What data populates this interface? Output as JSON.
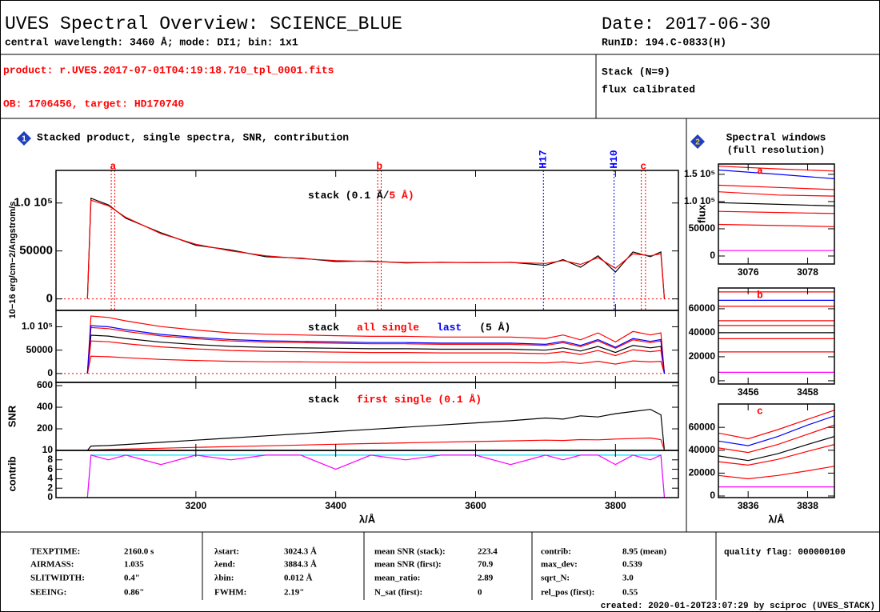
{
  "header": {
    "title": "UVES Spectral Overview: SCIENCE_BLUE",
    "subtitle": "central wavelength: 3460 Å; mode: DI1; bin: 1x1",
    "date": "Date: 2017-06-30",
    "run_id": "RunID: 194.C-0833(H)",
    "product": "product: r.UVES.2017-07-01T04:19:18.710_tpl_0001.fits",
    "ob": "OB: 1706456, target: HD170740",
    "stack": "Stack (N=9)",
    "calibration": "flux calibrated"
  },
  "panel_titles": {
    "main_number": "1",
    "main": "Stacked product, single spectra, SNR, contribution",
    "windows_number": "2",
    "windows": "Spectral windows",
    "windows_sub": "(full resolution)"
  },
  "chart_data": [
    {
      "type": "line",
      "ylabel": "10−16 erg/cm−2/Angstrom/s",
      "xlim": [
        3000,
        3890
      ],
      "ylim": [
        -12000,
        134000
      ],
      "yticks": [
        0,
        50000,
        {
          "value": 100000,
          "label": "1.0 10⁵"
        }
      ],
      "x": [
        3045,
        3050,
        3075,
        3100,
        3150,
        3200,
        3250,
        3300,
        3350,
        3400,
        3450,
        3500,
        3550,
        3600,
        3650,
        3700,
        3725,
        3750,
        3775,
        3800,
        3825,
        3850,
        3865,
        3870
      ],
      "series": [
        {
          "name": "stack (0.1 Å/",
          "color": "#000000",
          "values": [
            0,
            105000,
            98000,
            84000,
            69000,
            56000,
            51000,
            44000,
            42500,
            39000,
            39500,
            37500,
            38200,
            37800,
            38100,
            35000,
            41000,
            33000,
            45000,
            28000,
            49000,
            44000,
            49000,
            0
          ]
        },
        {
          "name": "5 Å)",
          "color": "#ff0000",
          "values": [
            0,
            103000,
            97000,
            85000,
            68000,
            57000,
            50000,
            45000,
            42000,
            40000,
            39000,
            38000,
            38000,
            38000,
            38000,
            37000,
            40000,
            36000,
            43000,
            32000,
            47000,
            45000,
            47000,
            0
          ]
        }
      ],
      "markers": [
        {
          "label": "a",
          "x": [
            3079,
            3084
          ],
          "color": "#ff0000"
        },
        {
          "label": "b",
          "x": [
            3460,
            3465
          ],
          "color": "#ff0000"
        },
        {
          "label": "H17",
          "x": [
            3697
          ],
          "color": "#0000ff"
        },
        {
          "label": "H10",
          "x": [
            3798
          ],
          "color": "#0000ff"
        },
        {
          "label": "c",
          "x": [
            3837,
            3843
          ],
          "color": "#ff0000"
        }
      ]
    },
    {
      "type": "line",
      "xlim": [
        3000,
        3890
      ],
      "ylim": [
        -19000,
        135000
      ],
      "yticks": [
        0,
        50000,
        {
          "value": 100000,
          "label": "1.0 10⁵"
        }
      ],
      "x": [
        3045,
        3050,
        3075,
        3100,
        3150,
        3200,
        3250,
        3300,
        3350,
        3400,
        3450,
        3500,
        3550,
        3600,
        3650,
        3700,
        3725,
        3750,
        3775,
        3800,
        3825,
        3850,
        3865,
        3870
      ],
      "legend_note": "(5 Å)",
      "series": [
        {
          "name": "stack",
          "color": "#000000",
          "values": [
            0,
            82000,
            80000,
            75000,
            67000,
            62000,
            58000,
            56000,
            55000,
            54000,
            53000,
            53000,
            52000,
            52000,
            52000,
            50000,
            55000,
            48000,
            58000,
            45000,
            60000,
            55000,
            58000,
            0
          ]
        },
        {
          "name": "all single",
          "color": "#ff0000",
          "spectra": [
            [
              0,
              123000,
              120000,
              112500,
              100500,
              93000,
              87000,
              84000,
              82500,
              81000,
              79500,
              79500,
              78000,
              78000,
              78000,
              75000,
              82500,
              72000,
              87000,
              67500,
              90000,
              82500,
              87000,
              0
            ],
            [
              0,
              98400,
              96000,
              90000,
              80400,
              74400,
              69600,
              67200,
              66000,
              64800,
              63600,
              63600,
              62400,
              62400,
              62400,
              60000,
              66000,
              57600,
              69600,
              54000,
              72000,
              66000,
              69600,
              0
            ],
            [
              0,
              69700,
              68000,
              63750,
              56950,
              52700,
              49300,
              47600,
              46750,
              45900,
              45050,
              45050,
              44200,
              44200,
              44200,
              42500,
              46750,
              40800,
              49300,
              38250,
              51000,
              46750,
              49300,
              0
            ],
            [
              0,
              36900,
              36000,
              33750,
              30150,
              27900,
              26100,
              25200,
              24750,
              24300,
              23850,
              23850,
              23400,
              23400,
              23400,
              22500,
              24750,
              21600,
              26100,
              20250,
              27000,
              24750,
              26100,
              0
            ]
          ]
        },
        {
          "name": "last",
          "color": "#0000ff",
          "values": [
            0,
            102500,
            100000,
            93750,
            83750,
            77500,
            72500,
            70000,
            68750,
            67500,
            66250,
            66250,
            65000,
            65000,
            65000,
            62500,
            68750,
            60000,
            72500,
            56250,
            75000,
            68750,
            72500,
            0
          ]
        }
      ]
    },
    {
      "type": "line",
      "ylabel": "SNR",
      "xlim": [
        3000,
        3890
      ],
      "ylim": [
        0,
        630
      ],
      "yticks": [
        200,
        400,
        600
      ],
      "x": [
        3045,
        3050,
        3075,
        3100,
        3150,
        3200,
        3250,
        3300,
        3350,
        3400,
        3450,
        3500,
        3550,
        3600,
        3650,
        3700,
        3725,
        3750,
        3775,
        3800,
        3825,
        3850,
        3865,
        3870
      ],
      "series": [
        {
          "name": "stack",
          "color": "#000000",
          "values": [
            0,
            40,
            45,
            55,
            75,
            95,
            115,
            135,
            155,
            175,
            195,
            215,
            235,
            255,
            275,
            300,
            290,
            320,
            310,
            340,
            360,
            380,
            330,
            0
          ]
        },
        {
          "name": "first single (0.1 Å)",
          "color": "#ff0000",
          "values": [
            0,
            5,
            8,
            12,
            20,
            28,
            35,
            42,
            50,
            57,
            64,
            70,
            76,
            82,
            88,
            95,
            92,
            100,
            98,
            105,
            110,
            115,
            100,
            0
          ]
        }
      ]
    },
    {
      "type": "line",
      "ylabel": "contrib",
      "xlabel": "λ/Å",
      "xlim": [
        3000,
        3890
      ],
      "ylim": [
        0,
        10
      ],
      "yticks": [
        0,
        2,
        4,
        6,
        8,
        10
      ],
      "xticks": [
        3200,
        3400,
        3600,
        3800
      ],
      "x": [
        3045,
        3050,
        3075,
        3100,
        3150,
        3200,
        3250,
        3300,
        3350,
        3400,
        3450,
        3500,
        3550,
        3600,
        3650,
        3700,
        3725,
        3750,
        3775,
        3800,
        3825,
        3850,
        3865,
        3870
      ],
      "series": [
        {
          "color": "#00e5ff",
          "values": [
            0,
            9,
            9,
            9,
            9,
            9,
            9,
            9,
            9,
            9,
            9,
            9,
            9,
            9,
            9,
            9,
            9,
            9,
            9,
            9,
            9,
            9,
            9,
            0
          ]
        },
        {
          "color": "#ff00ff",
          "values": [
            0,
            9,
            8,
            9,
            7,
            9,
            8,
            9,
            9,
            6,
            9,
            8,
            9,
            9,
            7,
            9,
            8,
            9,
            9,
            7,
            9,
            8,
            9,
            0
          ]
        }
      ]
    },
    {
      "type": "line",
      "label": "a",
      "ylabel": "flux",
      "xlim": [
        3075,
        3078.9
      ],
      "ylim": [
        -14700,
        169000
      ],
      "xticks": [
        3076,
        3078
      ],
      "yticks": [
        0,
        50000,
        {
          "value": 100000,
          "label": "1.0 10⁵"
        },
        {
          "value": 150000,
          "label": "1.5 10⁵"
        }
      ],
      "x": [
        3075,
        3077,
        3078.9
      ],
      "series": [
        {
          "color": "#ff0000",
          "values": [
            165000,
            160000,
            156000
          ]
        },
        {
          "color": "#0000ff",
          "values": [
            158000,
            150000,
            142000
          ]
        },
        {
          "color": "#ff0000",
          "values": [
            130000,
            126000,
            122000
          ]
        },
        {
          "color": "#ff0000",
          "values": [
            118000,
            112000,
            110000
          ]
        },
        {
          "color": "#000000",
          "values": [
            98000,
            95000,
            92000
          ]
        },
        {
          "color": "#ff0000",
          "values": [
            82000,
            80000,
            78000
          ]
        },
        {
          "color": "#ff0000",
          "values": [
            58000,
            56000,
            54000
          ]
        },
        {
          "color": "#ff00ff",
          "values": [
            10000,
            10000,
            10000
          ]
        }
      ]
    },
    {
      "type": "line",
      "label": "b",
      "xlim": [
        3455,
        3458.9
      ],
      "ylim": [
        -2700,
        77300
      ],
      "xticks": [
        3456,
        3458
      ],
      "yticks": [
        0,
        20000,
        40000,
        60000
      ],
      "x": [
        3455,
        3457,
        3458.9
      ],
      "series": [
        {
          "color": "#ff0000",
          "values": [
            74000,
            74000,
            74000
          ]
        },
        {
          "color": "#0000ff",
          "values": [
            67000,
            67000,
            67000
          ]
        },
        {
          "color": "#ff0000",
          "values": [
            62000,
            62000,
            62000
          ]
        },
        {
          "color": "#ff0000",
          "values": [
            50000,
            50000,
            50000
          ]
        },
        {
          "color": "#ff0000",
          "values": [
            46000,
            46000,
            46000
          ]
        },
        {
          "color": "#000000",
          "values": [
            40000,
            40000,
            40000
          ]
        },
        {
          "color": "#ff0000",
          "values": [
            35000,
            35000,
            35000
          ]
        },
        {
          "color": "#ff0000",
          "values": [
            24000,
            24000,
            24000
          ]
        },
        {
          "color": "#ff00ff",
          "values": [
            7000,
            7000,
            7000
          ]
        }
      ]
    },
    {
      "type": "line",
      "label": "c",
      "xlabel": "λ/Å",
      "xlim": [
        3835,
        3838.9
      ],
      "ylim": [
        -1400,
        80400
      ],
      "xticks": [
        3836,
        3838
      ],
      "yticks": [
        0,
        20000,
        40000,
        60000
      ],
      "x": [
        3835,
        3836,
        3837,
        3838,
        3838.9
      ],
      "series": [
        {
          "color": "#ff0000",
          "values": [
            55000,
            50000,
            58000,
            67000,
            75000
          ]
        },
        {
          "color": "#0000ff",
          "values": [
            48000,
            44000,
            52000,
            62000,
            70000
          ]
        },
        {
          "color": "#ff0000",
          "values": [
            42000,
            38000,
            45000,
            54000,
            62000
          ]
        },
        {
          "color": "#000000",
          "values": [
            35000,
            31000,
            37000,
            45000,
            52000
          ]
        },
        {
          "color": "#ff0000",
          "values": [
            30000,
            27000,
            32000,
            39000,
            45000
          ]
        },
        {
          "color": "#ff0000",
          "values": [
            18000,
            15000,
            18000,
            22000,
            26000
          ]
        },
        {
          "color": "#ff00ff",
          "values": [
            8000,
            8000,
            8000,
            8000,
            8000
          ]
        }
      ]
    }
  ],
  "footer": {
    "columns": [
      [
        [
          "TEXPTIME:",
          "2160.0 s"
        ],
        [
          "AIRMASS:",
          "1.035"
        ],
        [
          "SLITWIDTH:",
          "0.4\""
        ],
        [
          "SEEING:",
          "0.86\""
        ]
      ],
      [
        [
          "λstart:",
          "3024.3 Å"
        ],
        [
          "λend:",
          "3884.3 Å"
        ],
        [
          "λbin:",
          "0.012 Å"
        ],
        [
          "FWHM:",
          "2.19\""
        ]
      ],
      [
        [
          "mean SNR (stack):",
          "223.4"
        ],
        [
          "mean SNR (first):",
          "70.9"
        ],
        [
          "mean_ratio:",
          "2.89"
        ],
        [
          "N_sat (first):",
          "0"
        ]
      ],
      [
        [
          "contrib:",
          "8.95 (mean)"
        ],
        [
          "max_dev:",
          "0.539"
        ],
        [
          "sqrt_N:",
          "3.0"
        ],
        [
          "rel_pos (first):",
          "0.55"
        ]
      ]
    ],
    "quality_flag": "quality flag: 000000100",
    "created": "created: 2020-01-20T23:07:29 by sciproc (UVES_STACK)"
  }
}
